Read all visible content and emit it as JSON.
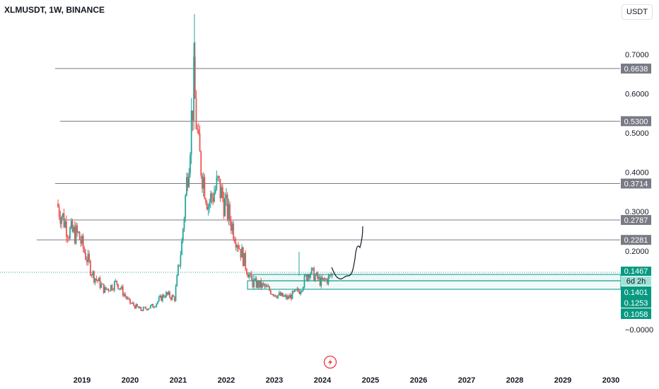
{
  "header": {
    "symbol_title": "XLMUSDT, 1W, BINANCE",
    "currency_label": "USDT"
  },
  "chart_data": {
    "type": "candlestick",
    "title": "XLMUSDT, 1W, BINANCE",
    "y_axis_ticks": [
      "0.7000",
      "0.6000",
      "0.5000",
      "0.4000",
      "0.3000",
      "0.2000",
      "−0.0000"
    ],
    "x_axis_ticks": [
      "2019",
      "2020",
      "2021",
      "2022",
      "2023",
      "2024",
      "2025",
      "2026",
      "2027",
      "2028",
      "2029",
      "2030"
    ],
    "horizontal_levels": [
      {
        "value": 0.6638,
        "label": "0.6638"
      },
      {
        "value": 0.53,
        "label": "0.5300"
      },
      {
        "value": 0.3714,
        "label": "0.3714"
      },
      {
        "value": 0.2787,
        "label": "0.2787"
      },
      {
        "value": 0.2281,
        "label": "0.2281"
      }
    ],
    "price_badges": [
      {
        "label": "0.1467",
        "color": "#089981"
      },
      {
        "label": "6d 2h",
        "color": "#089981"
      },
      {
        "label": "0.1401",
        "color": "#089981"
      },
      {
        "label": "0.1253",
        "color": "#089981"
      },
      {
        "label": "0.1058",
        "color": "#089981"
      }
    ],
    "colors": {
      "up": "#26a69a",
      "down": "#ef5350",
      "level_line": "#787b86",
      "zone": "#26a69a",
      "projection": "#131722"
    },
    "candles_approx": [
      {
        "t": 2018.5,
        "o": 0.32,
        "c": 0.25
      },
      {
        "t": 2018.75,
        "o": 0.25,
        "c": 0.24
      },
      {
        "t": 2018.95,
        "o": 0.24,
        "c": 0.14
      },
      {
        "t": 2019.25,
        "o": 0.14,
        "c": 0.1
      },
      {
        "t": 2019.5,
        "o": 0.1,
        "c": 0.12
      },
      {
        "t": 2019.75,
        "o": 0.12,
        "c": 0.07
      },
      {
        "t": 2020.0,
        "o": 0.07,
        "c": 0.05
      },
      {
        "t": 2020.25,
        "o": 0.05,
        "c": 0.06
      },
      {
        "t": 2020.5,
        "o": 0.06,
        "c": 0.09
      },
      {
        "t": 2020.75,
        "o": 0.09,
        "c": 0.08
      },
      {
        "t": 2020.95,
        "o": 0.08,
        "c": 0.22
      },
      {
        "t": 2021.1,
        "o": 0.22,
        "c": 0.45
      },
      {
        "t": 2021.25,
        "o": 0.45,
        "c": 0.62
      },
      {
        "t": 2021.35,
        "o": 0.62,
        "c": 0.45
      },
      {
        "t": 2021.45,
        "o": 0.45,
        "c": 0.32
      },
      {
        "t": 2021.65,
        "o": 0.32,
        "c": 0.37
      },
      {
        "t": 2021.85,
        "o": 0.37,
        "c": 0.3
      },
      {
        "t": 2022.05,
        "o": 0.3,
        "c": 0.21
      },
      {
        "t": 2022.3,
        "o": 0.21,
        "c": 0.12
      },
      {
        "t": 2022.55,
        "o": 0.12,
        "c": 0.11
      },
      {
        "t": 2022.8,
        "o": 0.11,
        "c": 0.09
      },
      {
        "t": 2023.05,
        "o": 0.09,
        "c": 0.08
      },
      {
        "t": 2023.3,
        "o": 0.08,
        "c": 0.1
      },
      {
        "t": 2023.55,
        "o": 0.1,
        "c": 0.15
      },
      {
        "t": 2023.75,
        "o": 0.15,
        "c": 0.12
      },
      {
        "t": 2024.0,
        "o": 0.12,
        "c": 0.13
      },
      {
        "t": 2024.15,
        "o": 0.13,
        "c": 0.14
      }
    ]
  }
}
